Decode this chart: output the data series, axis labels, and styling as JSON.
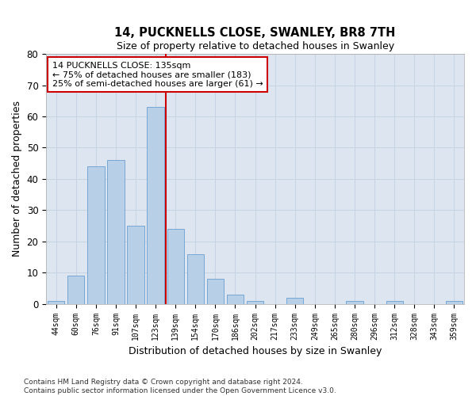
{
  "title1": "14, PUCKNELLS CLOSE, SWANLEY, BR8 7TH",
  "title2": "Size of property relative to detached houses in Swanley",
  "xlabel": "Distribution of detached houses by size in Swanley",
  "ylabel": "Number of detached properties",
  "categories": [
    "44sqm",
    "60sqm",
    "76sqm",
    "91sqm",
    "107sqm",
    "123sqm",
    "139sqm",
    "154sqm",
    "170sqm",
    "186sqm",
    "202sqm",
    "217sqm",
    "233sqm",
    "249sqm",
    "265sqm",
    "280sqm",
    "296sqm",
    "312sqm",
    "328sqm",
    "343sqm",
    "359sqm"
  ],
  "values": [
    1,
    9,
    44,
    46,
    25,
    63,
    24,
    16,
    8,
    3,
    1,
    0,
    2,
    0,
    0,
    1,
    0,
    1,
    0,
    0,
    1
  ],
  "bar_color": "#b8cfe8",
  "bar_edge_color": "#6a9fd0",
  "grid_color": "#c8d4e4",
  "background_color": "#dde6f0",
  "annotation_box_color": "#cc0000",
  "vline_color": "#cc0000",
  "vline_position": 5.5,
  "annotation_lines": [
    "14 PUCKNELLS CLOSE: 135sqm",
    "← 75% of detached houses are smaller (183)",
    "25% of semi-detached houses are larger (61) →"
  ],
  "ylim": [
    0,
    80
  ],
  "yticks": [
    0,
    10,
    20,
    30,
    40,
    50,
    60,
    70,
    80
  ],
  "footnote1": "Contains HM Land Registry data © Crown copyright and database right 2024.",
  "footnote2": "Contains public sector information licensed under the Open Government Licence v3.0."
}
